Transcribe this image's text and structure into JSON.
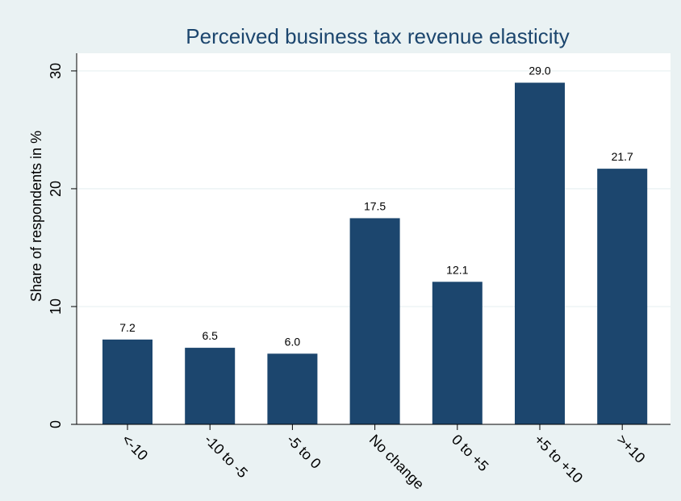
{
  "chart_data": {
    "type": "bar",
    "title": "Perceived business tax revenue elasticity",
    "xlabel": "",
    "ylabel": "Share of respondents in %",
    "categories": [
      "<-10",
      "-10 to -5",
      "-5 to 0",
      "No change",
      "0 to +5",
      "+5 to +10",
      ">+10"
    ],
    "values": [
      7.2,
      6.5,
      6.0,
      17.5,
      12.1,
      29.0,
      21.7
    ],
    "value_labels": [
      "7.2",
      "6.5",
      "6.0",
      "17.5",
      "12.1",
      "29.0",
      "21.7"
    ],
    "ylim": [
      0,
      31.5
    ],
    "yticks": [
      0,
      10,
      20,
      30
    ],
    "ytick_labels": [
      "0",
      "10",
      "20",
      "30"
    ],
    "grid": true,
    "legend": "none",
    "colors": {
      "bar": "#1c466e",
      "plot_background": "#ffffff",
      "outer_background": "#eaf2f3",
      "gridline": "#eaf2f3",
      "text": "#000000",
      "title": "#1c466e"
    }
  }
}
